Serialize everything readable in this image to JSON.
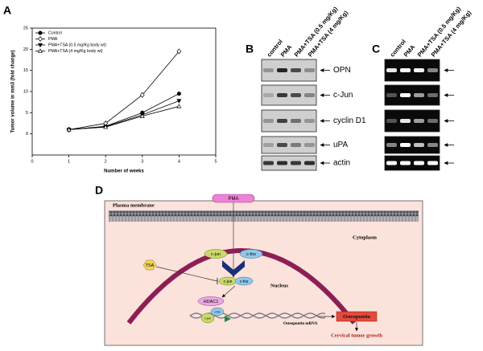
{
  "chart_data": {
    "type": "line",
    "panel": "A",
    "xlabel": "Number of weeks",
    "ylabel": "Tumor volume in mm3 (fold change)",
    "x": [
      1,
      2,
      3,
      4
    ],
    "series": [
      {
        "name": "Control",
        "color": "#000000",
        "marker": "circle",
        "filled": true,
        "values": [
          1,
          1.8,
          5,
          9.5
        ]
      },
      {
        "name": "PMA",
        "color": "#000000",
        "marker": "diamond",
        "filled": false,
        "values": [
          1,
          2.5,
          9.2,
          19.5
        ]
      },
      {
        "name": "PMA+TSA (0.5 mg/Kg body wt)",
        "color": "#000000",
        "marker": "triangle-down",
        "filled": true,
        "values": [
          1,
          1.7,
          4.5,
          7.8
        ]
      },
      {
        "name": "PMA+TSA (4 mg/Kg body wt)",
        "color": "#000000",
        "marker": "triangle-up",
        "filled": false,
        "values": [
          1,
          1.6,
          4.2,
          6.5
        ]
      }
    ],
    "xlim": [
      0,
      5
    ],
    "xticks": [
      0,
      1,
      2,
      3,
      4,
      5
    ],
    "ylim": [
      -5,
      25
    ],
    "yticks": [
      0,
      5,
      10,
      15,
      20,
      25
    ],
    "legend": "upper left",
    "grid": false
  },
  "blots": {
    "panel": "B",
    "columns": [
      "control",
      "PMA",
      "PMA+TSA (0.5 mg/Kg)",
      "PMA+TSA (4 mg/Kg)"
    ],
    "rows": [
      "OPN",
      "c-Jun",
      "cyclin D1",
      "uPA",
      "actin"
    ]
  },
  "gels": {
    "panel": "C",
    "columns": [
      "control",
      "PMA",
      "PMA+TSA (0.5 mg/Kg)",
      "PMA+TSA (4 mg/Kg)"
    ]
  },
  "diagram": {
    "panel": "D",
    "membrane": "Plasma membrane",
    "stimulus": "PMA",
    "cytoplasm": "Cytoplasm",
    "cjun": "c-jun",
    "cfos": "c-fos",
    "inhibitor": "TSA",
    "complex_jun": "c-jun",
    "complex_fos": "c-fos",
    "nucleus": "Nucleus",
    "hdac": "HDAC1",
    "dna_fos": "c-fos",
    "dna_jun": "c-jun",
    "mrna": "Osteopontin mRNA",
    "protein": "Osteopontin",
    "outcome": "Cervical tumor growth"
  }
}
